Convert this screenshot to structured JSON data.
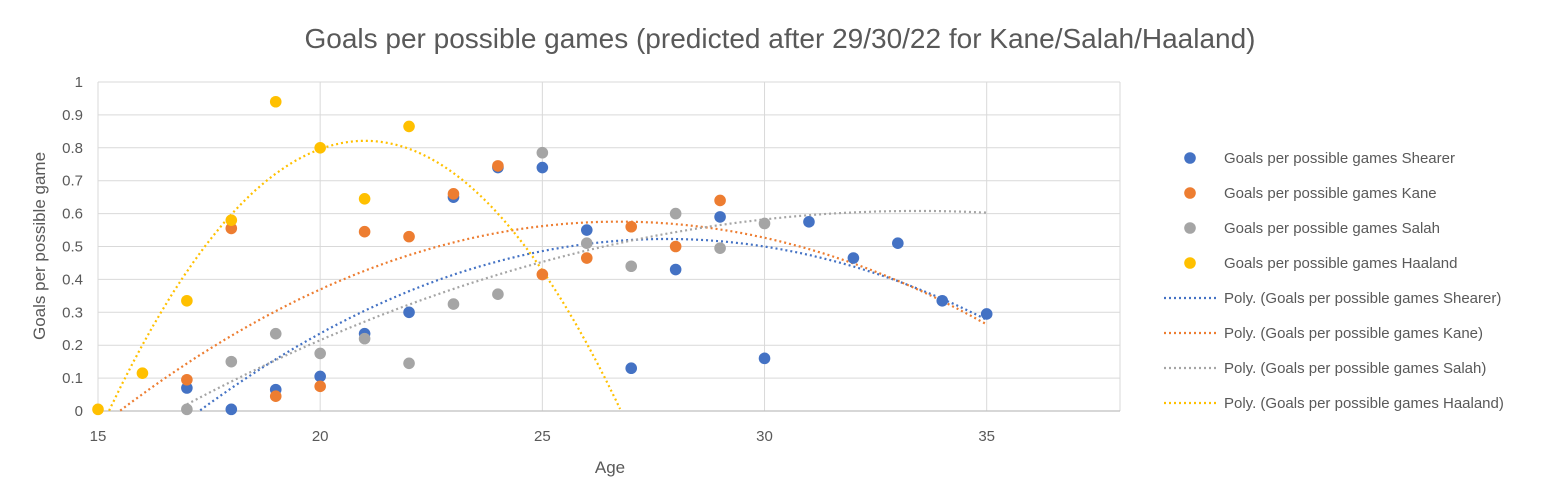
{
  "chart_data": {
    "type": "scatter",
    "title": "Goals per possible games (predicted after 29/30/22 for Kane/Salah/Haaland)",
    "xlabel": "Age",
    "ylabel": "Goals per possible game",
    "xlim": [
      15,
      38
    ],
    "ylim": [
      0,
      1
    ],
    "x_ticks": [
      15,
      20,
      25,
      30,
      35
    ],
    "y_ticks": [
      0,
      0.1,
      0.2,
      0.3,
      0.4,
      0.5,
      0.6,
      0.7,
      0.8,
      0.9,
      1
    ],
    "grid": true,
    "legend_position": "right",
    "series": [
      {
        "name": "Goals per possible games Shearer",
        "color": "#4472C4",
        "points": [
          [
            17,
            0.07
          ],
          [
            18,
            0.005
          ],
          [
            19,
            0.065
          ],
          [
            20,
            0.105
          ],
          [
            21,
            0.235
          ],
          [
            22,
            0.3
          ],
          [
            23,
            0.65
          ],
          [
            24,
            0.74
          ],
          [
            25,
            0.74
          ],
          [
            26,
            0.55
          ],
          [
            27,
            0.13
          ],
          [
            28,
            0.43
          ],
          [
            29,
            0.59
          ],
          [
            30,
            0.16
          ],
          [
            31,
            0.575
          ],
          [
            32,
            0.465
          ],
          [
            33,
            0.51
          ],
          [
            34,
            0.335
          ],
          [
            35,
            0.295
          ]
        ]
      },
      {
        "name": "Goals per possible games Kane",
        "color": "#ED7D31",
        "points": [
          [
            17,
            0.095
          ],
          [
            18,
            0.555
          ],
          [
            19,
            0.045
          ],
          [
            20,
            0.075
          ],
          [
            21,
            0.545
          ],
          [
            22,
            0.53
          ],
          [
            23,
            0.66
          ],
          [
            24,
            0.745
          ],
          [
            25,
            0.415
          ],
          [
            26,
            0.465
          ],
          [
            27,
            0.56
          ],
          [
            28,
            0.5
          ],
          [
            29,
            0.64
          ]
        ]
      },
      {
        "name": "Goals per possible games Salah",
        "color": "#A5A5A5",
        "points": [
          [
            17,
            0.005
          ],
          [
            18,
            0.15
          ],
          [
            19,
            0.235
          ],
          [
            20,
            0.175
          ],
          [
            21,
            0.22
          ],
          [
            22,
            0.145
          ],
          [
            23,
            0.325
          ],
          [
            24,
            0.355
          ],
          [
            25,
            0.785
          ],
          [
            26,
            0.51
          ],
          [
            27,
            0.44
          ],
          [
            28,
            0.6
          ],
          [
            29,
            0.495
          ],
          [
            30,
            0.57
          ]
        ]
      },
      {
        "name": "Goals per possible games Haaland",
        "color": "#FFC000",
        "points": [
          [
            15,
            0.005
          ],
          [
            16,
            0.115
          ],
          [
            17,
            0.335
          ],
          [
            18,
            0.58
          ],
          [
            19,
            0.94
          ],
          [
            20,
            0.8
          ],
          [
            21,
            0.645
          ],
          [
            22,
            0.865
          ]
        ]
      }
    ],
    "trendlines": [
      {
        "name": "Poly. (Goals per possible games Shearer)",
        "color": "#4472C4",
        "type": "polynomial",
        "x_range": [
          17,
          35
        ]
      },
      {
        "name": "Poly. (Goals per possible games Kane)",
        "color": "#ED7D31",
        "type": "polynomial",
        "x_range": [
          15.5,
          35
        ]
      },
      {
        "name": "Poly. (Goals per possible games Salah)",
        "color": "#A5A5A5",
        "type": "polynomial",
        "x_range": [
          17,
          35
        ]
      },
      {
        "name": "Poly. (Goals per possible games Haaland)",
        "color": "#FFC000",
        "type": "polynomial",
        "x_range": [
          15,
          27
        ]
      }
    ]
  }
}
